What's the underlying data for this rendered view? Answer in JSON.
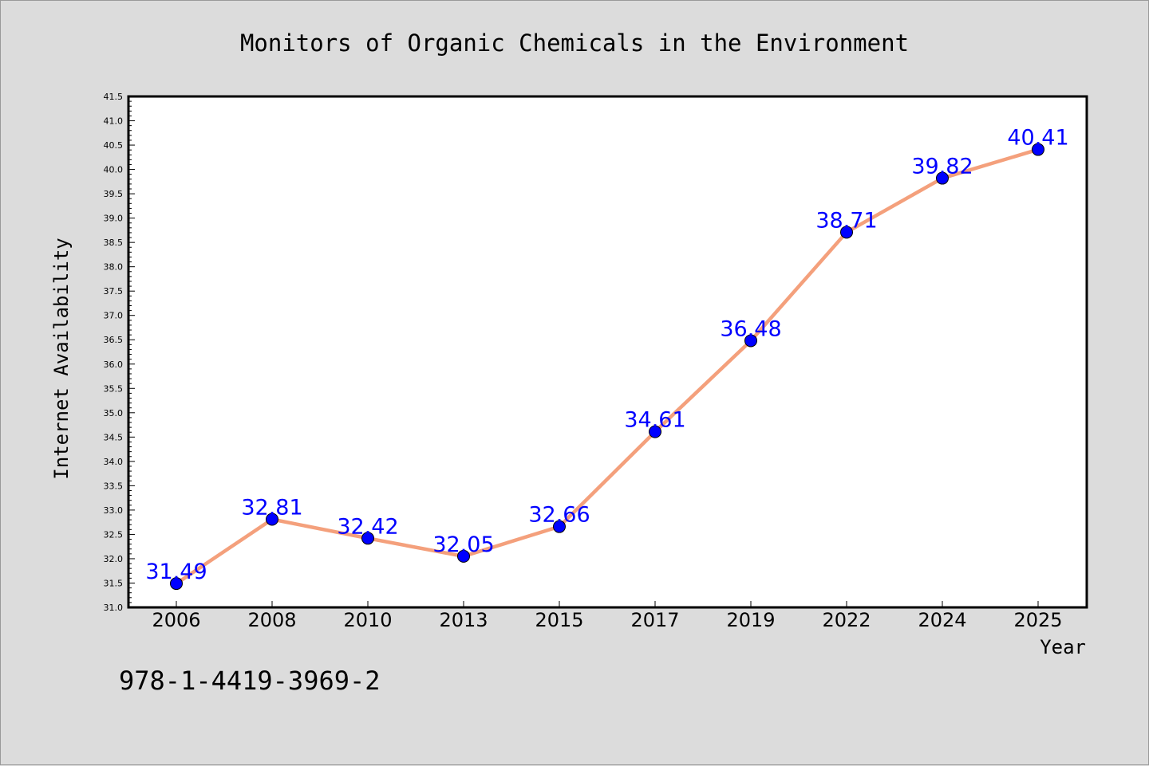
{
  "chart_data": {
    "type": "line",
    "title": "Monitors of Organic Chemicals in the Environment",
    "xlabel": "Year",
    "ylabel": "Internet Availability",
    "categories": [
      "2006",
      "2008",
      "2010",
      "2013",
      "2015",
      "2017",
      "2019",
      "2022",
      "2024",
      "2025"
    ],
    "series": [
      {
        "values": [
          31.49,
          32.81,
          32.42,
          32.05,
          32.66,
          34.61,
          36.48,
          38.71,
          39.82,
          40.41
        ],
        "data_labels": [
          "31.49",
          "32.81",
          "32.42",
          "32.05",
          "32.66",
          "34.61",
          "36.48",
          "38.71",
          "39.82",
          "40.41"
        ],
        "line_color": "#f4a07c",
        "marker_color": "#0000ff",
        "label_color": "#0000ff"
      }
    ],
    "ylim": [
      31.0,
      41.5
    ],
    "yticks": [
      "31.0",
      "31.5",
      "32.0",
      "32.5",
      "33.0",
      "33.5",
      "34.0",
      "34.5",
      "35.0",
      "35.5",
      "36.0",
      "36.5",
      "37.0",
      "37.5",
      "38.0",
      "38.5",
      "39.0",
      "39.5",
      "40.0",
      "40.5",
      "41.0",
      "41.5"
    ],
    "grid": false,
    "legend": "none"
  },
  "annotation": "978-1-4419-3969-2",
  "colors": {
    "figure_background": "#dcdcdc",
    "plot_background": "#ffffff"
  }
}
